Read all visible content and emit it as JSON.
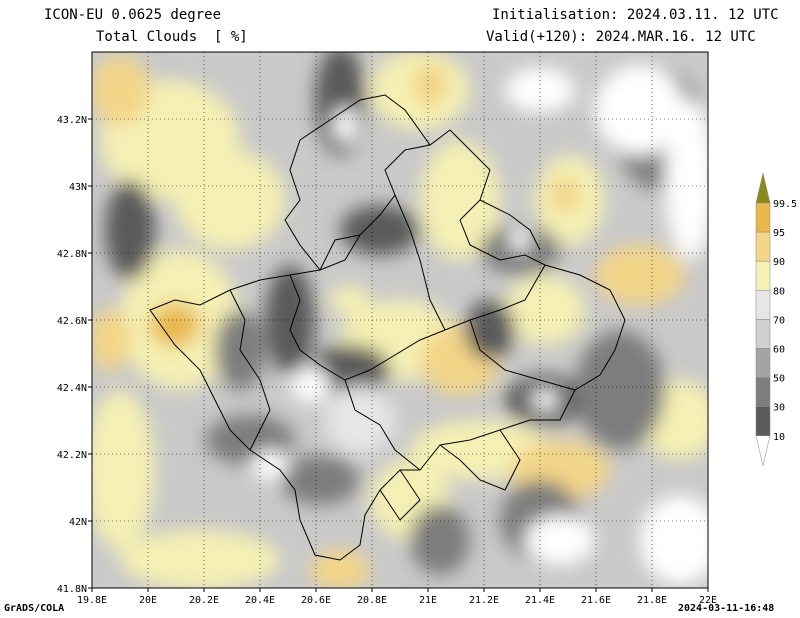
{
  "header": {
    "model": "ICON-EU 0.0625 degree",
    "variable": "Total Clouds  [ %]",
    "initialisation": "Initialisation: 2024.03.11. 12 UTC",
    "valid": "Valid(+120): 2024.MAR.16. 12 UTC"
  },
  "map": {
    "lon_range": [
      19.8,
      22.0
    ],
    "lat_range": [
      41.8,
      43.4
    ],
    "lon_ticks": [
      "19.8E",
      "20E",
      "20.2E",
      "20.4E",
      "20.6E",
      "20.8E",
      "21E",
      "21.2E",
      "21.4E",
      "21.6E",
      "21.8E",
      "22E"
    ],
    "lat_ticks": [
      "41.8N",
      "42N",
      "42.2N",
      "42.4N",
      "42.6N",
      "42.8N",
      "43N",
      "43.2N"
    ],
    "gridlines": "dotted"
  },
  "legend": {
    "levels": [
      "10",
      "30",
      "50",
      "60",
      "70",
      "80",
      "90",
      "95",
      "99.5"
    ],
    "colors": {
      "below_10": "#ffffff",
      "10_30": "#5a5a5a",
      "30_50": "#7d7d7d",
      "50_60": "#a4a4a4",
      "60_70": "#cfcfcf",
      "70_80": "#e6e6e6",
      "80_90": "#f5f0b4",
      "90_95": "#f3d588",
      "95_99.5": "#e8b84c",
      "above_99.5": "#8a8a1c"
    }
  },
  "footer": {
    "software": "GrADS/COLA",
    "timestamp": "2024-03-11-16:48"
  }
}
